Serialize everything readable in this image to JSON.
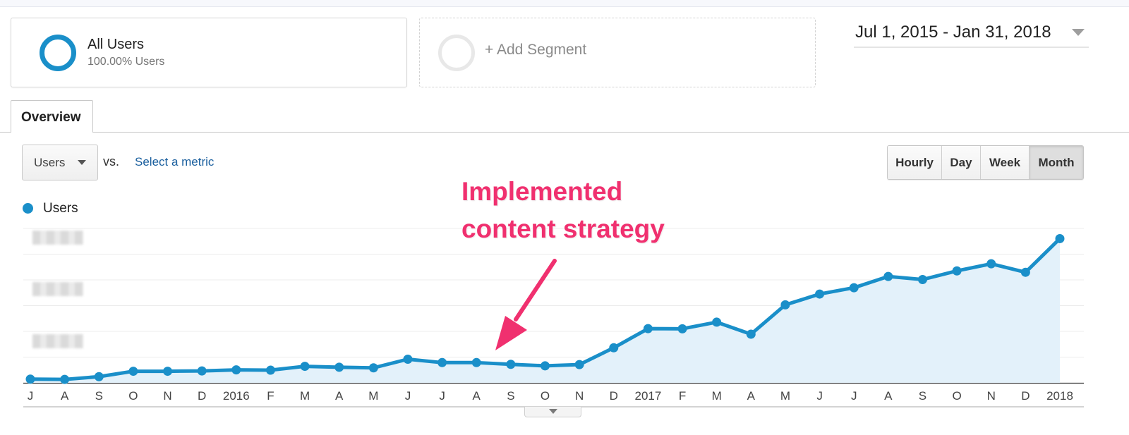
{
  "segments": {
    "all_users": {
      "title": "All Users",
      "subtitle": "100.00% Users"
    },
    "add_segment_label": "+ Add Segment"
  },
  "date_range": "Jul 1, 2015 - Jan 31, 2018",
  "tabs": [
    {
      "label": "Overview",
      "active": true
    }
  ],
  "metric": {
    "selected": "Users",
    "vs_label": "vs.",
    "compare_link": "Select a metric"
  },
  "intervals": [
    "Hourly",
    "Day",
    "Week",
    "Month"
  ],
  "active_interval": "Month",
  "legend": {
    "label": "Users",
    "color": "#1a8fc9"
  },
  "annotation": {
    "line1": "Implemented",
    "line2": "content strategy",
    "color": "#f0306f"
  },
  "chart_data": {
    "type": "area",
    "series": [
      {
        "name": "Users",
        "color": "#1a8fc9"
      }
    ],
    "x": [
      "J",
      "A",
      "S",
      "O",
      "N",
      "D",
      "2016",
      "F",
      "M",
      "A",
      "M",
      "J",
      "J",
      "A",
      "S",
      "O",
      "N",
      "D",
      "2017",
      "F",
      "M",
      "A",
      "M",
      "J",
      "J",
      "A",
      "S",
      "O",
      "N",
      "D",
      "2018"
    ],
    "values": [
      2.4,
      2.2,
      4.0,
      7.5,
      7.5,
      7.7,
      8.4,
      8.2,
      10.7,
      10.1,
      9.7,
      15.3,
      13.1,
      13.1,
      12.0,
      11.0,
      11.8,
      22.7,
      35.1,
      35.0,
      39.3,
      31.5,
      50.5,
      57.5,
      61.6,
      68.9,
      66.9,
      72.5,
      77.1,
      71.6,
      93.4
    ],
    "y_tick_labels_obscured": true,
    "ylim": [
      0,
      100
    ],
    "grid": true
  }
}
